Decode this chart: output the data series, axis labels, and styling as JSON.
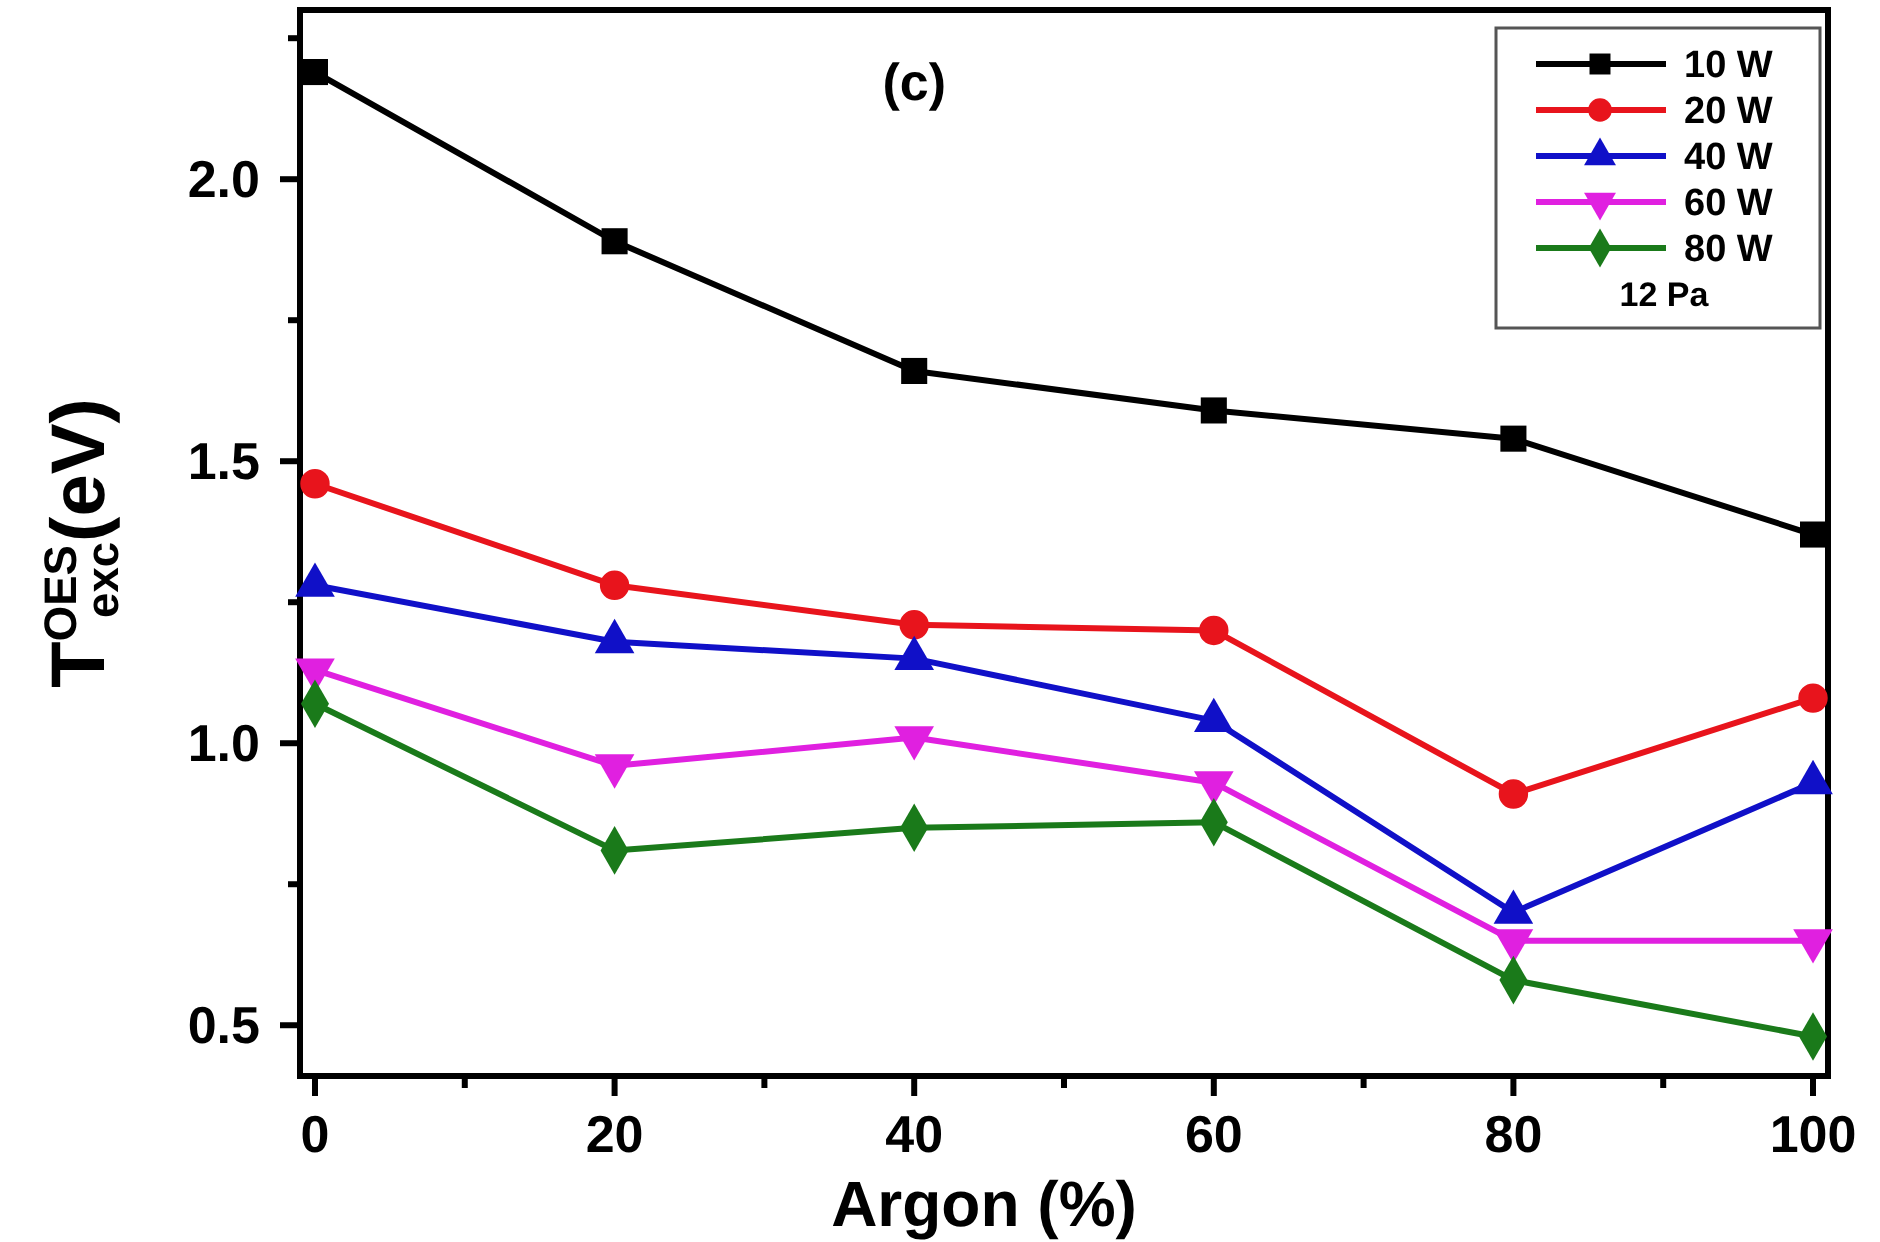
{
  "chart_data": {
    "type": "line",
    "title": "(c)",
    "xlabel": "Argon (%)",
    "ylabel": "T$^{OES}$$_{exc}$(eV)",
    "legend_title": "12 Pa",
    "x": [
      0,
      20,
      40,
      60,
      80,
      100
    ],
    "series": [
      {
        "name": "10 W",
        "color": "#000000",
        "marker": "square",
        "values": [
          2.19,
          1.89,
          1.66,
          1.59,
          1.54,
          1.37
        ]
      },
      {
        "name": "20 W",
        "color": "#e8141c",
        "marker": "circle",
        "values": [
          1.46,
          1.28,
          1.21,
          1.2,
          0.91,
          1.08
        ]
      },
      {
        "name": "40 W",
        "color": "#1010c8",
        "marker": "triangle",
        "values": [
          1.28,
          1.18,
          1.15,
          1.04,
          0.7,
          0.93
        ]
      },
      {
        "name": "60 W",
        "color": "#e020e0",
        "marker": "triangle-down",
        "values": [
          1.13,
          0.96,
          1.01,
          0.93,
          0.65,
          0.65
        ]
      },
      {
        "name": "80 W",
        "color": "#1a7a1a",
        "marker": "diamond",
        "values": [
          1.07,
          0.81,
          0.85,
          0.86,
          0.58,
          0.48
        ]
      }
    ],
    "xlim": [
      -1,
      101
    ],
    "ylim": [
      0.41,
      2.3
    ],
    "xticks": [
      0,
      {
        "value": 10,
        "label": null
      },
      20,
      {
        "value": 30,
        "label": null
      },
      40,
      {
        "value": 50,
        "label": null
      },
      60,
      {
        "value": 70,
        "label": null
      },
      80,
      {
        "value": 90,
        "label": null
      },
      100
    ],
    "yticks": [
      0.5,
      {
        "value": 0.75,
        "label": null
      },
      {
        "value": 1,
        "label": "1.0"
      },
      {
        "value": 1.25,
        "label": null
      },
      1.5,
      {
        "value": 1.75,
        "label": null
      },
      {
        "value": 2,
        "label": "2.0"
      },
      {
        "value": 2.25,
        "label": null
      }
    ],
    "legend": "top right",
    "grid": false,
    "line_style": "solid"
  }
}
